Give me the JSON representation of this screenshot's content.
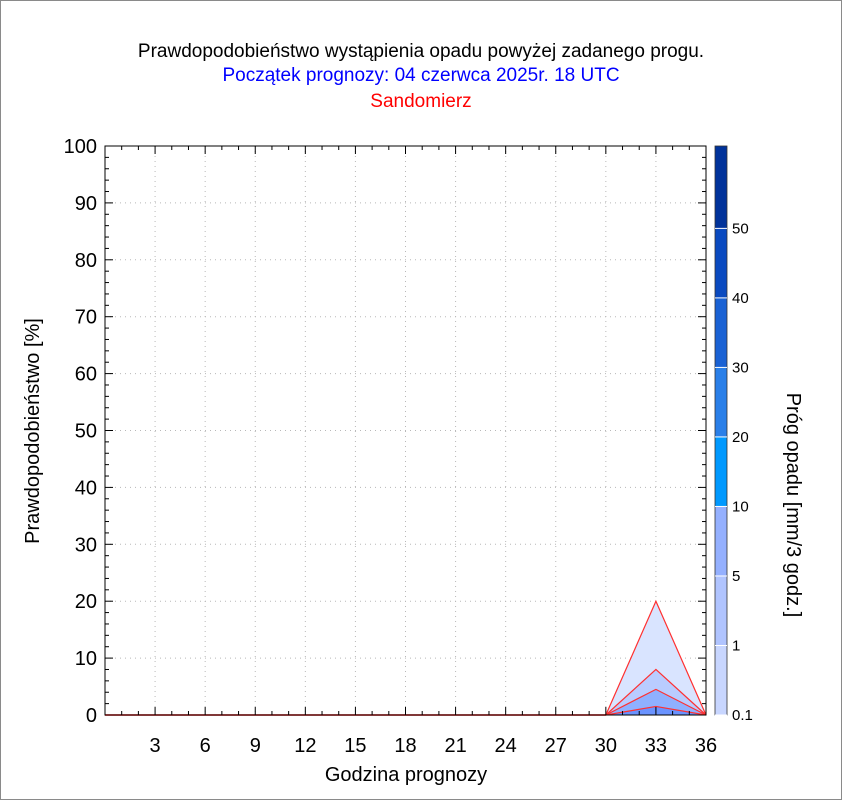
{
  "title": "Prawdopodobieństwo wystąpienia opadu powyżej zadanego progu.",
  "subtitle": "Początek prognozy: 04 czerwca 2025r. 18 UTC",
  "location": "Sandomierz",
  "colors": {
    "title": "#000000",
    "subtitle": "#0000ff",
    "location": "#ff0000",
    "series_line": "#ff3030"
  },
  "chart_data": {
    "type": "area",
    "xlabel": "Godzina prognozy",
    "ylabel": "Prawdopodobieństwo [%]",
    "xlim": [
      0,
      36
    ],
    "ylim": [
      0,
      100
    ],
    "xticks": [
      3,
      6,
      9,
      12,
      15,
      18,
      21,
      24,
      27,
      30,
      33,
      36
    ],
    "yticks": [
      0,
      10,
      20,
      30,
      40,
      50,
      60,
      70,
      80,
      90,
      100
    ],
    "grid": true,
    "x": [
      0,
      3,
      6,
      9,
      12,
      15,
      18,
      21,
      24,
      27,
      30,
      33,
      36
    ],
    "series": [
      {
        "threshold": 0.1,
        "color": "#d9e4ff",
        "values": [
          0,
          0,
          0,
          0,
          0,
          0,
          0,
          0,
          0,
          0,
          0,
          20,
          0
        ]
      },
      {
        "threshold": 1,
        "color": "#b9ccff",
        "values": [
          0,
          0,
          0,
          0,
          0,
          0,
          0,
          0,
          0,
          0,
          0,
          8,
          0
        ]
      },
      {
        "threshold": 5,
        "color": "#8fb0ff",
        "values": [
          0,
          0,
          0,
          0,
          0,
          0,
          0,
          0,
          0,
          0,
          0,
          4.5,
          0
        ]
      },
      {
        "threshold": 10,
        "color": "#6a93ff",
        "values": [
          0,
          0,
          0,
          0,
          0,
          0,
          0,
          0,
          0,
          0,
          0,
          1.5,
          0
        ]
      }
    ],
    "colorbar": {
      "label": "Próg opadu [mm/3 godz.]",
      "ticks": [
        "0.1",
        "1",
        "5",
        "10",
        "20",
        "30",
        "40",
        "50"
      ],
      "colors": [
        "#dde6ff",
        "#c8d6ff",
        "#b0c4ff",
        "#94b0ff",
        "#0099ff",
        "#2a7fe8",
        "#1a62d4",
        "#0a4ac0",
        "#00329a"
      ]
    }
  }
}
